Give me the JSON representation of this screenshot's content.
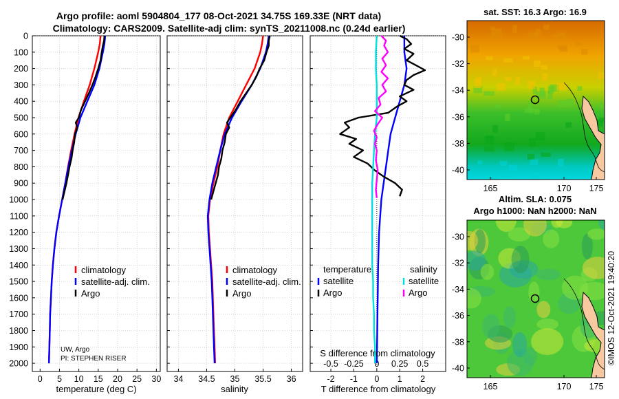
{
  "title": {
    "line1": "Argo profile: aoml 5904804_177 08-Oct-2021 34.75S 169.33E (NRT data)",
    "line2": "Climatology: CARS2009. Satellite-adj clim: synTS_20211008.nc (0.24d earlier)"
  },
  "credit": {
    "org": "UW, Argo",
    "pi": "PI: STEPHEN RISER"
  },
  "stamp": "©IMOS 12-Oct-2021 19:40:20",
  "colors": {
    "climatology": "#ff0000",
    "satellite": "#0000ff",
    "argo": "#000000",
    "sat_sal": "#00e0e0",
    "argo_sal": "#ff00ff"
  },
  "chart_data": [
    {
      "id": "temperature",
      "type": "line",
      "xlabel": "temperature (deg C)",
      "xlim": [
        -2,
        31
      ],
      "xticks": [
        "0",
        "5",
        "10",
        "15",
        "20",
        "25",
        "30"
      ],
      "ylim": [
        0,
        2050
      ],
      "yticks": [
        "0",
        "100",
        "200",
        "300",
        "400",
        "500",
        "600",
        "700",
        "800",
        "900",
        "1000",
        "1100",
        "1200",
        "1300",
        "1400",
        "1500",
        "1600",
        "1700",
        "1800",
        "1900",
        "2000"
      ],
      "legend": [
        "climatology",
        "satellite-adj. clim.",
        "Argo"
      ],
      "series": [
        {
          "name": "climatology",
          "depth": [
            0,
            50,
            100,
            200,
            300,
            400,
            500,
            600,
            700,
            800,
            900,
            1000,
            1100,
            1200,
            1300,
            1400,
            1500,
            1600,
            1700,
            1800,
            1900,
            2000
          ],
          "values": [
            15.6,
            15.4,
            15.0,
            14.0,
            12.8,
            11.3,
            9.9,
            8.9,
            8.0,
            7.2,
            6.5,
            5.7,
            4.9,
            4.2,
            3.7,
            3.3,
            3.0,
            2.8,
            2.6,
            2.5,
            2.4,
            2.3
          ]
        },
        {
          "name": "satellite-adj. clim.",
          "depth": [
            0,
            50,
            100,
            200,
            300,
            400,
            500,
            600,
            700,
            800,
            900,
            1000,
            1100,
            1200,
            1300,
            1400,
            1500,
            1600,
            1700,
            1800,
            1900,
            2000
          ],
          "values": [
            16.8,
            16.6,
            16.2,
            15.3,
            14.0,
            12.2,
            10.4,
            9.2,
            8.2,
            7.3,
            6.5,
            5.7,
            4.9,
            4.2,
            3.7,
            3.3,
            3.0,
            2.8,
            2.6,
            2.5,
            2.4,
            2.3
          ]
        },
        {
          "name": "Argo",
          "depth": [
            0,
            30,
            60,
            100,
            150,
            200,
            250,
            300,
            350,
            400,
            450,
            500,
            530,
            560,
            600,
            650,
            700,
            750,
            800,
            850,
            900,
            950,
            1000
          ],
          "values": [
            16.6,
            16.5,
            16.2,
            15.9,
            15.6,
            15.0,
            14.3,
            13.5,
            12.6,
            11.6,
            10.6,
            10.0,
            9.2,
            9.6,
            9.0,
            8.8,
            8.4,
            8.1,
            7.6,
            7.2,
            6.8,
            6.3,
            5.8
          ]
        }
      ]
    },
    {
      "id": "salinity",
      "type": "line",
      "xlabel": "salinity",
      "xlim": [
        33.8,
        36.2
      ],
      "xticks": [
        "34",
        "34.5",
        "35",
        "35.5",
        "36"
      ],
      "ylim": [
        0,
        2050
      ],
      "legend": [
        "climatology",
        "satellite-adj. clim.",
        "Argo"
      ],
      "series": [
        {
          "name": "climatology",
          "depth": [
            0,
            50,
            100,
            200,
            300,
            400,
            500,
            600,
            700,
            800,
            900,
            1000,
            1100,
            1200,
            1300,
            1400,
            1500,
            1600,
            1700,
            1800,
            1900,
            2000
          ],
          "values": [
            35.5,
            35.48,
            35.45,
            35.35,
            35.2,
            35.05,
            34.9,
            34.8,
            34.74,
            34.69,
            34.62,
            34.56,
            34.53,
            34.54,
            34.56,
            34.58,
            34.6,
            34.61,
            34.62,
            34.63,
            34.64,
            34.65
          ]
        },
        {
          "name": "satellite-adj. clim.",
          "depth": [
            0,
            50,
            100,
            200,
            300,
            400,
            500,
            600,
            700,
            800,
            900,
            1000,
            1100,
            1200,
            1300,
            1400,
            1500,
            1600,
            1700,
            1800,
            1900,
            2000
          ],
          "values": [
            35.6,
            35.58,
            35.55,
            35.45,
            35.3,
            35.12,
            34.95,
            34.82,
            34.74,
            34.67,
            34.6,
            34.55,
            34.52,
            34.53,
            34.55,
            34.57,
            34.59,
            34.6,
            34.61,
            34.62,
            34.63,
            34.64
          ]
        },
        {
          "name": "Argo",
          "depth": [
            0,
            30,
            60,
            100,
            150,
            200,
            250,
            300,
            350,
            400,
            450,
            500,
            530,
            560,
            600,
            650,
            700,
            750,
            800,
            850,
            900,
            950,
            1000
          ],
          "values": [
            35.62,
            35.6,
            35.6,
            35.56,
            35.52,
            35.44,
            35.38,
            35.3,
            35.2,
            35.1,
            35.02,
            34.92,
            34.86,
            34.9,
            34.84,
            34.82,
            34.78,
            34.76,
            34.72,
            34.7,
            34.66,
            34.62,
            34.58
          ]
        }
      ]
    },
    {
      "id": "difference",
      "type": "line",
      "xlabel": "T difference from climatology",
      "xlabel_top": "S difference from climatology",
      "xlim": [
        -2.9,
        3.0
      ],
      "xticks": [
        "-2",
        "-1",
        "0",
        "1",
        "2"
      ],
      "xticks_top": [
        "-0.5",
        "-0.25",
        "0",
        "0.25",
        "0.5"
      ],
      "ylim": [
        0,
        2050
      ],
      "legend_left_title": "temperature",
      "legend_right_title": "salinity",
      "legend": [
        "satellite",
        "Argo",
        "satellite",
        "Argo"
      ],
      "series": [
        {
          "name": "T satellite",
          "depth": [
            0,
            100,
            200,
            300,
            400,
            500,
            600,
            700,
            800,
            900,
            1000,
            1100,
            1200,
            1300,
            1400,
            1500,
            1600,
            1700,
            1800,
            1900,
            2000
          ],
          "values": [
            1.2,
            1.2,
            1.3,
            1.2,
            1.0,
            0.8,
            0.6,
            0.5,
            0.4,
            0.3,
            0.2,
            0.15,
            0.1,
            0.08,
            0.06,
            0.05,
            0.04,
            0.03,
            0.02,
            0.01,
            0.0
          ]
        },
        {
          "name": "T Argo",
          "depth": [
            0,
            20,
            50,
            80,
            110,
            150,
            180,
            210,
            240,
            270,
            300,
            330,
            370,
            400,
            430,
            470,
            500,
            530,
            560,
            600,
            630,
            660,
            700,
            740,
            780,
            820,
            860,
            900,
            940,
            980
          ],
          "values": [
            1.0,
            1.3,
            1.5,
            1.2,
            1.6,
            1.3,
            1.7,
            2.1,
            1.6,
            1.3,
            1.2,
            1.6,
            1.0,
            1.3,
            0.9,
            0.5,
            -0.8,
            -1.4,
            -1.2,
            -1.6,
            -0.9,
            -1.2,
            -0.6,
            -1.0,
            -0.4,
            -0.1,
            0.3,
            0.8,
            1.1,
            1.0
          ]
        },
        {
          "name": "S satellite",
          "depth": [
            0,
            100,
            200,
            300,
            400,
            500,
            600,
            700,
            800,
            900,
            1000,
            1100,
            1200,
            1300,
            1400,
            1500,
            1600,
            1700,
            1800,
            1900,
            2000
          ],
          "values": [
            0.0,
            -0.01,
            -0.01,
            0.0,
            0.0,
            0.0,
            -0.02,
            -0.03,
            -0.04,
            -0.05,
            -0.05,
            -0.05,
            -0.05,
            -0.05,
            -0.05,
            -0.04,
            -0.04,
            -0.03,
            -0.03,
            -0.02,
            -0.02
          ]
        },
        {
          "name": "S Argo",
          "depth": [
            0,
            30,
            60,
            100,
            140,
            180,
            220,
            260,
            300,
            340,
            380,
            420,
            460,
            500,
            540,
            580,
            620,
            660,
            700,
            760,
            820,
            880,
            940,
            990
          ],
          "values": [
            0.05,
            0.1,
            0.08,
            0.12,
            0.06,
            0.1,
            0.05,
            0.12,
            0.06,
            0.1,
            0.02,
            0.04,
            -0.02,
            0.06,
            0.01,
            -0.03,
            0.0,
            -0.02,
            0.0,
            -0.01,
            0.01,
            0.0,
            -0.01,
            0.0
          ]
        }
      ]
    }
  ],
  "maps": [
    {
      "id": "sst",
      "title": "sat. SST: 16.3 Argo: 16.9",
      "lon_ticks": [
        "165",
        "170",
        "175"
      ],
      "lat_ticks": [
        "-30",
        "-32",
        "-34",
        "-36",
        "-38",
        "-40"
      ],
      "argo_position": {
        "lon": 169.33,
        "lat": -34.75
      }
    },
    {
      "id": "sla",
      "title_line1": "Altim. SLA: 0.075",
      "title_line2": "Argo h1000: NaN h2000: NaN",
      "lon_ticks": [
        "165",
        "170",
        "175"
      ],
      "lat_ticks": [
        "-30",
        "-32",
        "-34",
        "-36",
        "-38",
        "-40"
      ],
      "argo_position": {
        "lon": 169.33,
        "lat": -34.75
      }
    }
  ]
}
